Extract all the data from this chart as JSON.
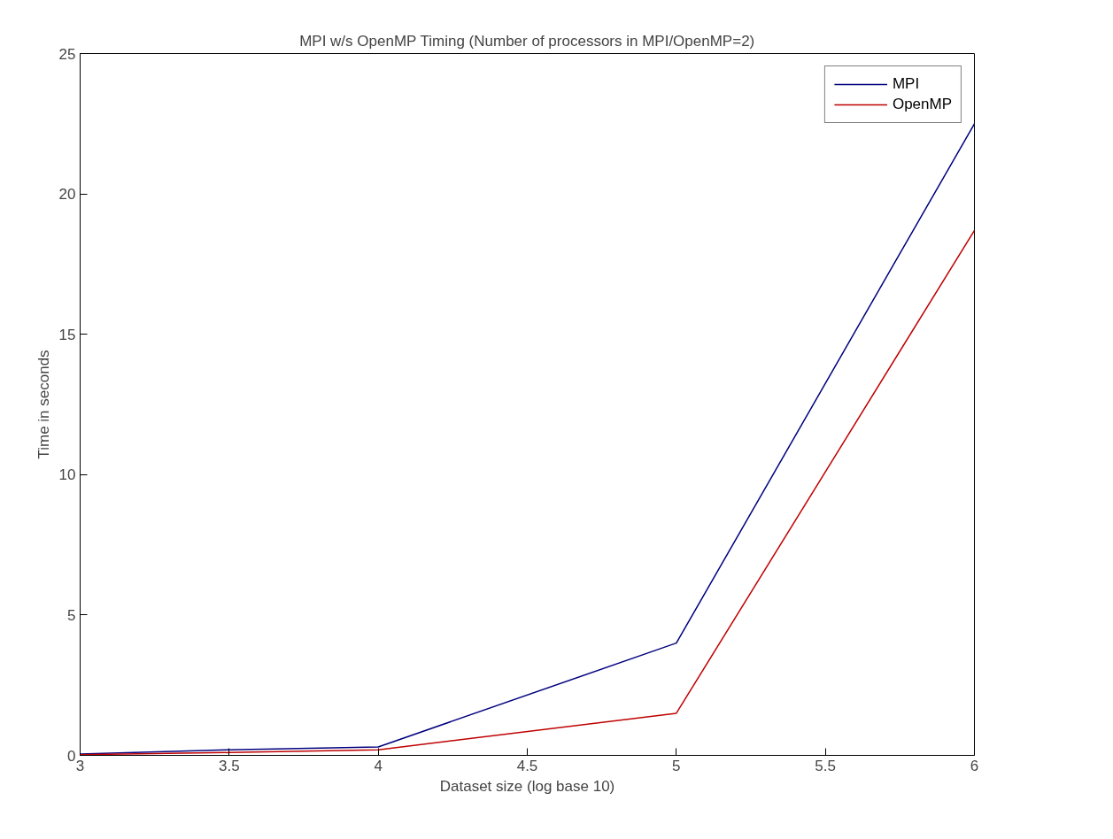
{
  "chart_data": {
    "type": "line",
    "title": "MPI w/s OpenMP Timing (Number of processors in MPI/OpenMP=2)",
    "xlabel": "Dataset size (log base 10)",
    "ylabel": "Time in seconds",
    "x": [
      3,
      3.5,
      4,
      5,
      6
    ],
    "series": [
      {
        "name": "MPI",
        "color": "#00007f",
        "values": [
          0.05,
          0.2,
          0.3,
          4.0,
          22.5
        ]
      },
      {
        "name": "OpenMP",
        "color": "#c00000",
        "values": [
          0.02,
          0.1,
          0.2,
          1.5,
          18.7
        ]
      }
    ],
    "xlim": [
      3,
      6
    ],
    "xticks": [
      3,
      3.5,
      4,
      4.5,
      5,
      5.5,
      6
    ],
    "ylim": [
      0,
      25
    ],
    "yticks": [
      0,
      5,
      10,
      15,
      20,
      25
    ],
    "grid": false,
    "legend": "top right",
    "marker": "none",
    "line_style": "solid"
  }
}
